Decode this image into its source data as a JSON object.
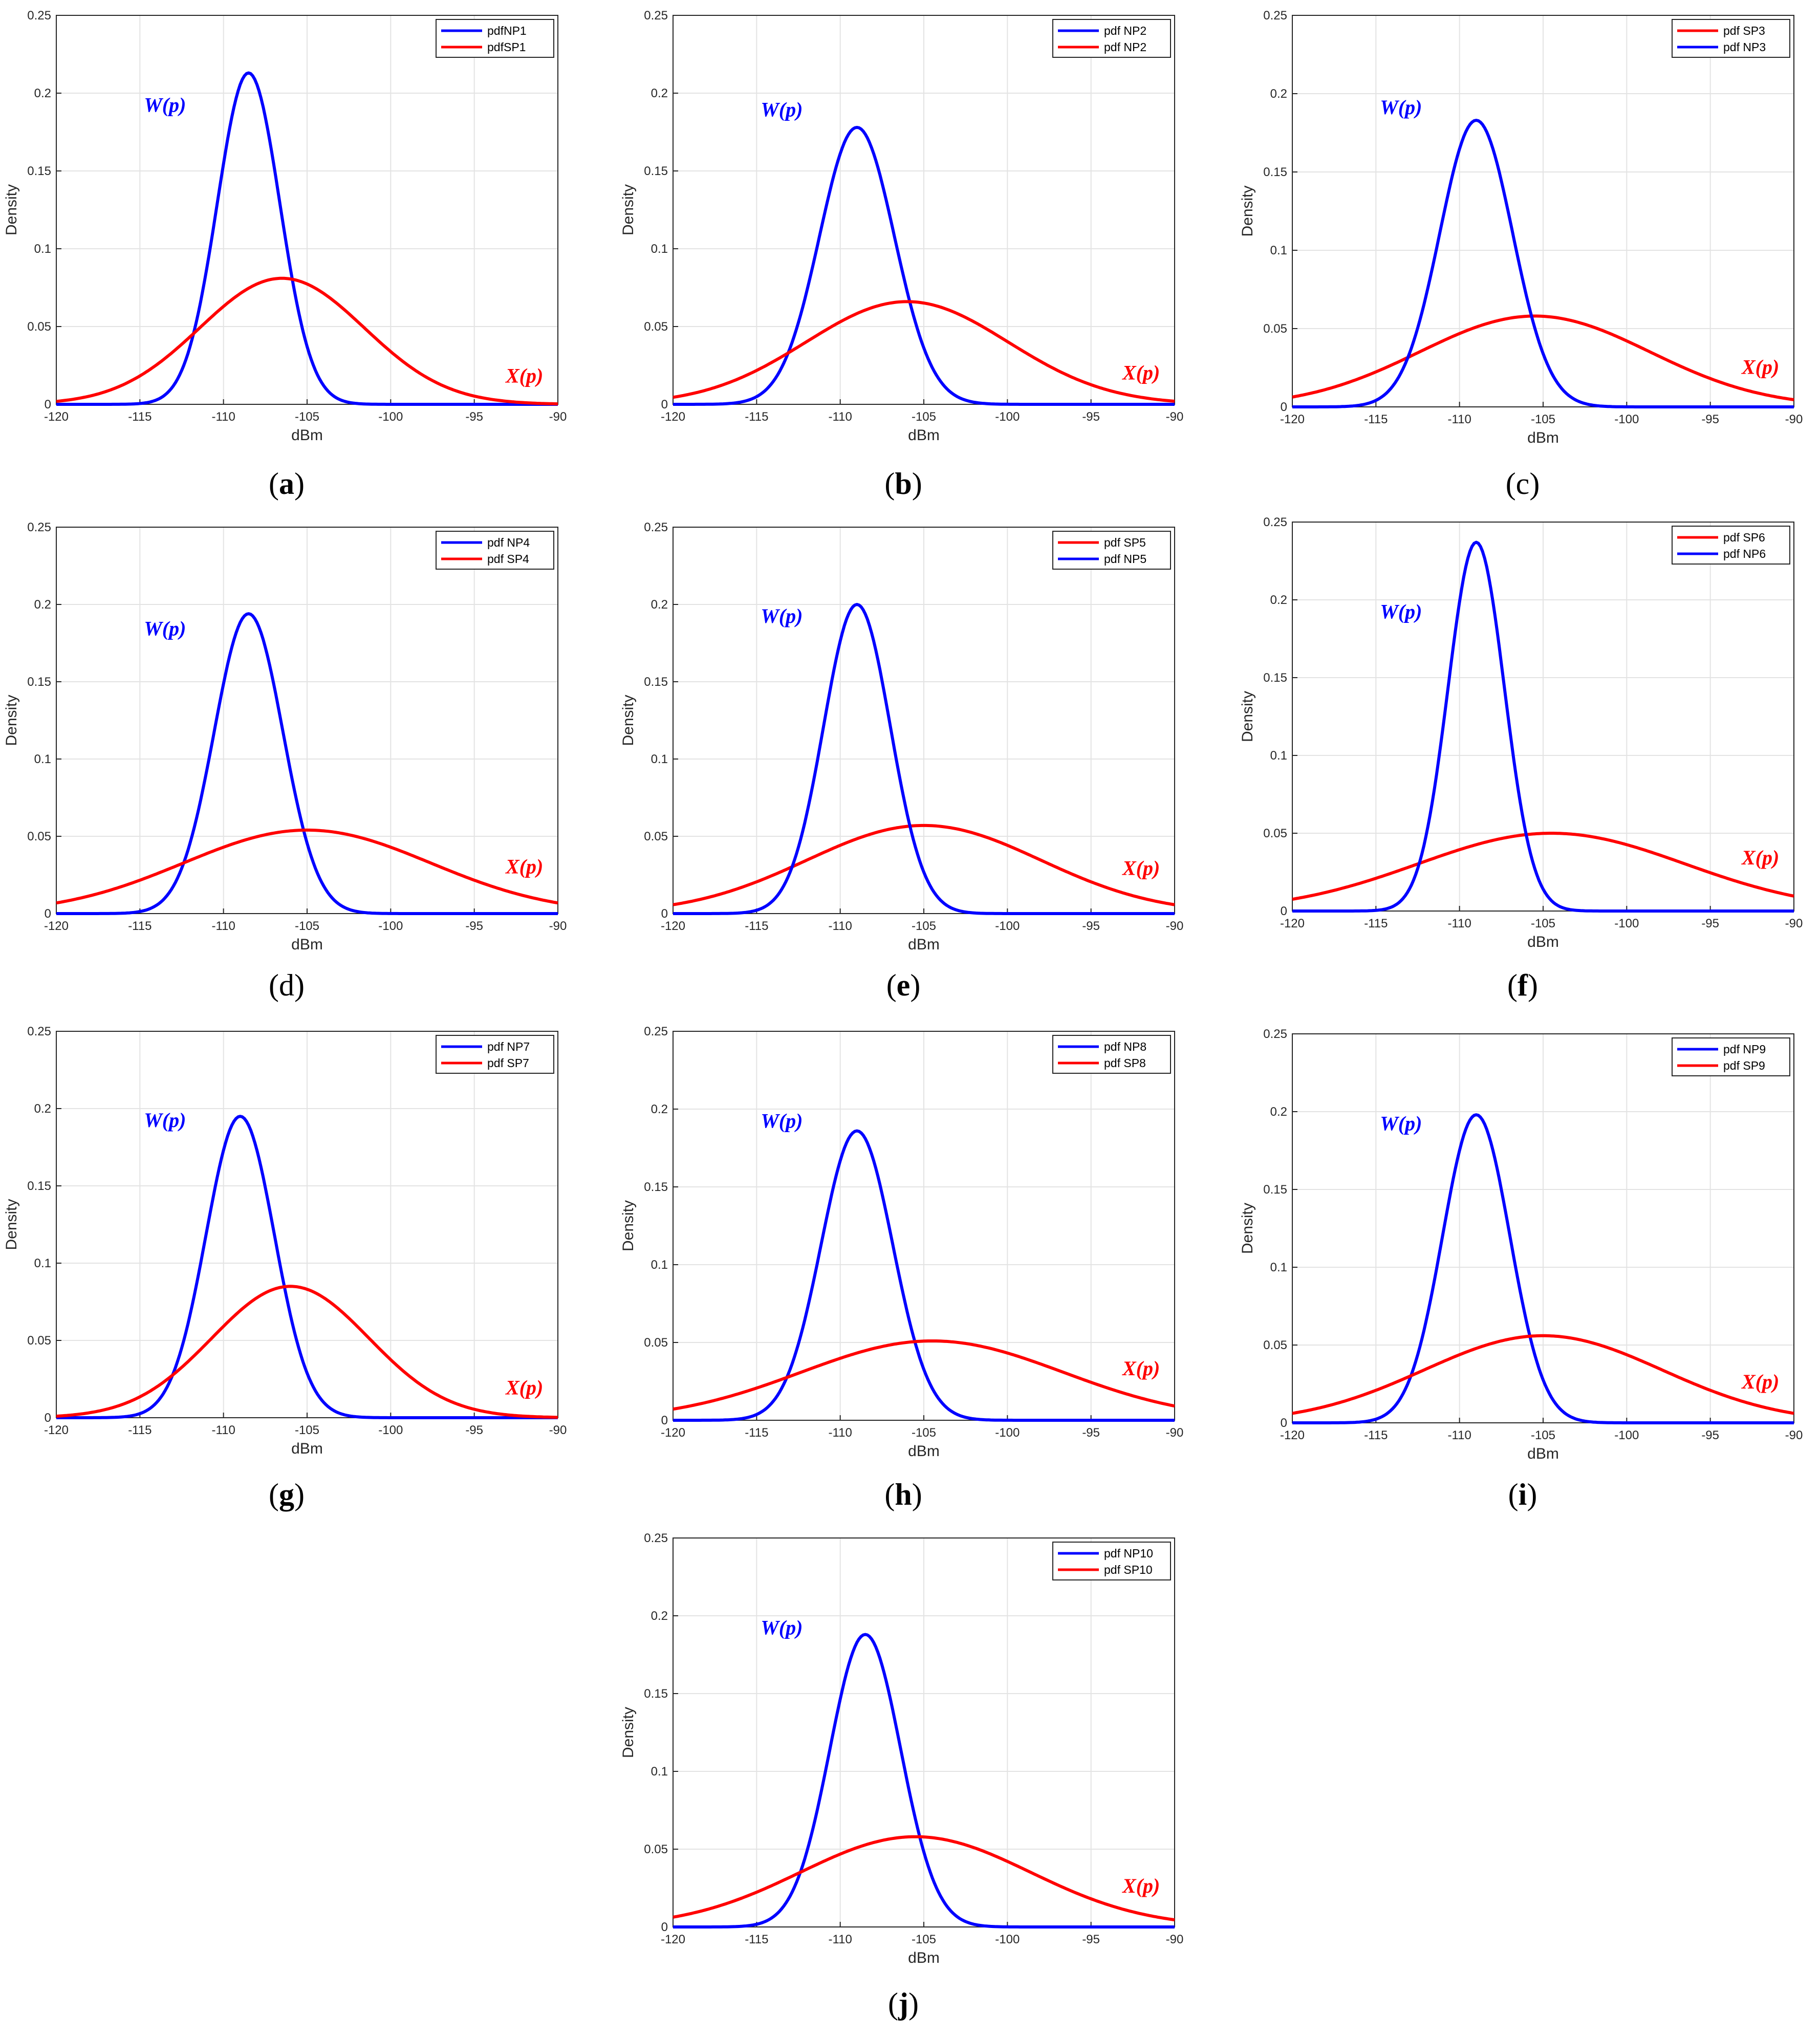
{
  "figure": {
    "panel_count": 10
  },
  "chart_data": [
    {
      "type": "line",
      "panel": "a",
      "caption_letter": "a",
      "caption_bold": true,
      "xlabel": "dBm",
      "ylabel": "Density",
      "xlim": [
        -120,
        -90
      ],
      "ylim": [
        0,
        0.25
      ],
      "xticks": [
        -120,
        -115,
        -110,
        -105,
        -100,
        -95,
        -90
      ],
      "yticks": [
        0,
        0.05,
        0.1,
        0.15,
        0.2,
        0.25
      ],
      "grid": true,
      "legend_location": "top-right",
      "series": [
        {
          "name": "pdfNP1",
          "color": "#0000ff",
          "distribution": "normal",
          "mean": -108.5,
          "peak": 0.213
        },
        {
          "name": "pdfSP1",
          "color": "#ff0000",
          "distribution": "normal",
          "mean": -106.5,
          "peak": 0.081
        }
      ],
      "annotations": [
        {
          "text": "W(p)",
          "color": "#0000ff",
          "x": -113.5,
          "y": 0.188
        },
        {
          "text": "X(p)",
          "color": "#ff0000",
          "x": -92.0,
          "y": 0.014
        }
      ]
    },
    {
      "type": "line",
      "panel": "b",
      "caption_letter": "b",
      "caption_bold": true,
      "xlabel": "dBm",
      "ylabel": "Density",
      "xlim": [
        -120,
        -90
      ],
      "ylim": [
        0,
        0.25
      ],
      "xticks": [
        -120,
        -115,
        -110,
        -105,
        -100,
        -95,
        -90
      ],
      "yticks": [
        0,
        0.05,
        0.1,
        0.15,
        0.2,
        0.25
      ],
      "grid": true,
      "legend_location": "top-right",
      "series": [
        {
          "name": "pdf NP2",
          "color": "#0000ff",
          "distribution": "normal",
          "mean": -109.0,
          "peak": 0.178
        },
        {
          "name": "pdf NP2",
          "color": "#ff0000",
          "distribution": "normal",
          "mean": -106.0,
          "peak": 0.066
        }
      ],
      "annotations": [
        {
          "text": "W(p)",
          "color": "#0000ff",
          "x": -113.5,
          "y": 0.185
        },
        {
          "text": "X(p)",
          "color": "#ff0000",
          "x": -92.0,
          "y": 0.016
        }
      ]
    },
    {
      "type": "line",
      "panel": "c",
      "caption_letter": "c",
      "caption_bold": false,
      "xlabel": "dBm",
      "ylabel": "Density",
      "xlim": [
        -120,
        -90
      ],
      "ylim": [
        0,
        0.25
      ],
      "xticks": [
        -120,
        -115,
        -110,
        -105,
        -100,
        -95,
        -90
      ],
      "yticks": [
        0,
        0.05,
        0.1,
        0.15,
        0.2,
        0.25
      ],
      "grid": true,
      "legend_location": "top-right",
      "series": [
        {
          "name": "pdf SP3",
          "color": "#ff0000",
          "distribution": "normal",
          "mean": -105.5,
          "peak": 0.058
        },
        {
          "name": "pdf NP3",
          "color": "#0000ff",
          "distribution": "normal",
          "mean": -109.0,
          "peak": 0.183
        }
      ],
      "annotations": [
        {
          "text": "W(p)",
          "color": "#0000ff",
          "x": -113.5,
          "y": 0.187
        },
        {
          "text": "X(p)",
          "color": "#ff0000",
          "x": -92.0,
          "y": 0.021
        }
      ]
    },
    {
      "type": "line",
      "panel": "d",
      "caption_letter": "d",
      "caption_bold": false,
      "xlabel": "dBm",
      "ylabel": "Density",
      "xlim": [
        -120,
        -90
      ],
      "ylim": [
        0,
        0.25
      ],
      "xticks": [
        -120,
        -115,
        -110,
        -105,
        -100,
        -95,
        -90
      ],
      "yticks": [
        0,
        0.05,
        0.1,
        0.15,
        0.2,
        0.25
      ],
      "grid": true,
      "legend_location": "top-right",
      "series": [
        {
          "name": "pdf NP4",
          "color": "#0000ff",
          "distribution": "normal",
          "mean": -108.5,
          "peak": 0.194
        },
        {
          "name": "pdf SP4",
          "color": "#ff0000",
          "distribution": "normal",
          "mean": -105.0,
          "peak": 0.054
        }
      ],
      "annotations": [
        {
          "text": "W(p)",
          "color": "#0000ff",
          "x": -113.5,
          "y": 0.18
        },
        {
          "text": "X(p)",
          "color": "#ff0000",
          "x": -92.0,
          "y": 0.026
        }
      ]
    },
    {
      "type": "line",
      "panel": "e",
      "caption_letter": "e",
      "caption_bold": true,
      "xlabel": "dBm",
      "ylabel": "Density",
      "xlim": [
        -120,
        -90
      ],
      "ylim": [
        0,
        0.25
      ],
      "xticks": [
        -120,
        -115,
        -110,
        -105,
        -100,
        -95,
        -90
      ],
      "yticks": [
        0,
        0.05,
        0.1,
        0.15,
        0.2,
        0.25
      ],
      "grid": true,
      "legend_location": "top-right",
      "series": [
        {
          "name": "pdf SP5",
          "color": "#ff0000",
          "distribution": "normal",
          "mean": -105.0,
          "peak": 0.057
        },
        {
          "name": "pdf NP5",
          "color": "#0000ff",
          "distribution": "normal",
          "mean": -109.0,
          "peak": 0.2
        }
      ],
      "annotations": [
        {
          "text": "W(p)",
          "color": "#0000ff",
          "x": -113.5,
          "y": 0.188
        },
        {
          "text": "X(p)",
          "color": "#ff0000",
          "x": -92.0,
          "y": 0.025
        }
      ]
    },
    {
      "type": "line",
      "panel": "f",
      "caption_letter": "f",
      "caption_bold": true,
      "xlabel": "dBm",
      "ylabel": "Density",
      "xlim": [
        -120,
        -90
      ],
      "ylim": [
        0,
        0.25
      ],
      "xticks": [
        -120,
        -115,
        -110,
        -105,
        -100,
        -95,
        -90
      ],
      "yticks": [
        0,
        0.05,
        0.1,
        0.15,
        0.2,
        0.25
      ],
      "grid": true,
      "legend_location": "top-right",
      "series": [
        {
          "name": "pdf SP6",
          "color": "#ff0000",
          "distribution": "normal",
          "mean": -104.5,
          "peak": 0.05
        },
        {
          "name": "pdf NP6",
          "color": "#0000ff",
          "distribution": "normal",
          "mean": -109.0,
          "peak": 0.237
        }
      ],
      "annotations": [
        {
          "text": "W(p)",
          "color": "#0000ff",
          "x": -113.5,
          "y": 0.188
        },
        {
          "text": "X(p)",
          "color": "#ff0000",
          "x": -92.0,
          "y": 0.03
        }
      ]
    },
    {
      "type": "line",
      "panel": "g",
      "caption_letter": "g",
      "caption_bold": true,
      "xlabel": "dBm",
      "ylabel": "Density",
      "xlim": [
        -120,
        -90
      ],
      "ylim": [
        0,
        0.25
      ],
      "xticks": [
        -120,
        -115,
        -110,
        -105,
        -100,
        -95,
        -90
      ],
      "yticks": [
        0,
        0.05,
        0.1,
        0.15,
        0.2,
        0.25
      ],
      "grid": true,
      "legend_location": "top-right",
      "series": [
        {
          "name": "pdf NP7",
          "color": "#0000ff",
          "distribution": "normal",
          "mean": -109.0,
          "peak": 0.195
        },
        {
          "name": "pdf SP7",
          "color": "#ff0000",
          "distribution": "normal",
          "mean": -106.0,
          "peak": 0.085
        }
      ],
      "annotations": [
        {
          "text": "W(p)",
          "color": "#0000ff",
          "x": -113.5,
          "y": 0.188
        },
        {
          "text": "X(p)",
          "color": "#ff0000",
          "x": -92.0,
          "y": 0.015
        }
      ]
    },
    {
      "type": "line",
      "panel": "h",
      "caption_letter": "h",
      "caption_bold": true,
      "xlabel": "dBm",
      "ylabel": "Density",
      "xlim": [
        -120,
        -90
      ],
      "ylim": [
        0,
        0.25
      ],
      "xticks": [
        -120,
        -115,
        -110,
        -105,
        -100,
        -95,
        -90
      ],
      "yticks": [
        0,
        0.05,
        0.1,
        0.15,
        0.2,
        0.25
      ],
      "grid": true,
      "legend_location": "top-right",
      "series": [
        {
          "name": "pdf NP8",
          "color": "#0000ff",
          "distribution": "normal",
          "mean": -109.0,
          "peak": 0.186
        },
        {
          "name": "pdf SP8",
          "color": "#ff0000",
          "distribution": "normal",
          "mean": -104.5,
          "peak": 0.051
        }
      ],
      "annotations": [
        {
          "text": "W(p)",
          "color": "#0000ff",
          "x": -113.5,
          "y": 0.188
        },
        {
          "text": "X(p)",
          "color": "#ff0000",
          "x": -92.0,
          "y": 0.029
        }
      ]
    },
    {
      "type": "line",
      "panel": "i",
      "caption_letter": "i",
      "caption_bold": true,
      "xlabel": "dBm",
      "ylabel": "Density",
      "xlim": [
        -120,
        -90
      ],
      "ylim": [
        0,
        0.25
      ],
      "xticks": [
        -120,
        -115,
        -110,
        -105,
        -100,
        -95,
        -90
      ],
      "yticks": [
        0,
        0.05,
        0.1,
        0.15,
        0.2,
        0.25
      ],
      "grid": true,
      "legend_location": "top-right",
      "series": [
        {
          "name": "pdf NP9",
          "color": "#0000ff",
          "distribution": "normal",
          "mean": -109.0,
          "peak": 0.198
        },
        {
          "name": "pdf SP9",
          "color": "#ff0000",
          "distribution": "normal",
          "mean": -105.0,
          "peak": 0.056
        }
      ],
      "annotations": [
        {
          "text": "W(p)",
          "color": "#0000ff",
          "x": -113.5,
          "y": 0.188
        },
        {
          "text": "X(p)",
          "color": "#ff0000",
          "x": -92.0,
          "y": 0.022
        }
      ]
    },
    {
      "type": "line",
      "panel": "j",
      "caption_letter": "j",
      "caption_bold": true,
      "xlabel": "dBm",
      "ylabel": "Density",
      "xlim": [
        -120,
        -90
      ],
      "ylim": [
        0,
        0.25
      ],
      "xticks": [
        -120,
        -115,
        -110,
        -105,
        -100,
        -95,
        -90
      ],
      "yticks": [
        0,
        0.05,
        0.1,
        0.15,
        0.2,
        0.25
      ],
      "grid": true,
      "legend_location": "top-right",
      "series": [
        {
          "name": "pdf NP10",
          "color": "#0000ff",
          "distribution": "normal",
          "mean": -108.5,
          "peak": 0.188
        },
        {
          "name": "pdf SP10",
          "color": "#ff0000",
          "distribution": "normal",
          "mean": -105.5,
          "peak": 0.058
        }
      ],
      "annotations": [
        {
          "text": "W(p)",
          "color": "#0000ff",
          "x": -113.5,
          "y": 0.188
        },
        {
          "text": "X(p)",
          "color": "#ff0000",
          "x": -92.0,
          "y": 0.022
        }
      ]
    }
  ]
}
